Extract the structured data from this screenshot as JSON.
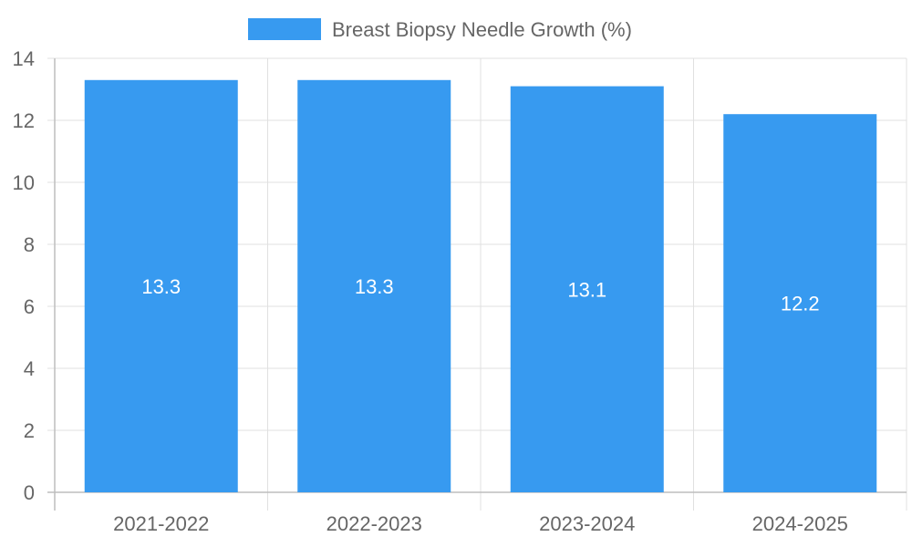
{
  "chart_data": {
    "type": "bar",
    "title": "",
    "xlabel": "",
    "ylabel": "",
    "categories": [
      "2021-2022",
      "2022-2023",
      "2023-2024",
      "2024-2025"
    ],
    "series": [
      {
        "name": "Breast Biopsy Needle Growth (%)",
        "values": [
          13.3,
          13.3,
          13.1,
          12.2
        ],
        "color": "#379AF0"
      }
    ],
    "ylim": [
      0,
      14
    ],
    "yticks": [
      0,
      2,
      4,
      6,
      8,
      10,
      12,
      14
    ],
    "grid": true,
    "legend_position": "top-center",
    "data_labels": true
  }
}
